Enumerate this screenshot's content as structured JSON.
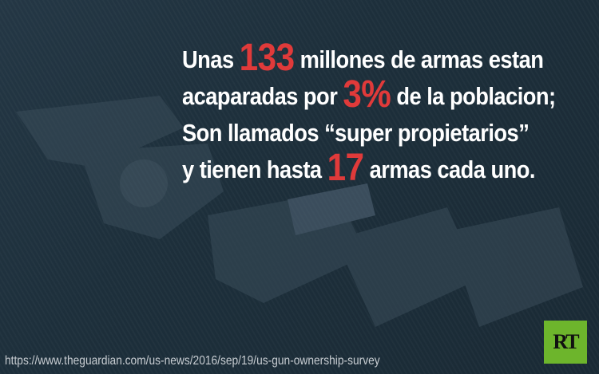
{
  "headline": {
    "line1": {
      "pre": "Unas ",
      "highlight": "133",
      "post": " millones de armas estan"
    },
    "line2": {
      "pre": "acaparadas por ",
      "highlight": "3%",
      "post": " de la poblacion;"
    },
    "line3": {
      "text": "Son llamados “super propietarios”"
    },
    "line4": {
      "pre": "y tienen hasta ",
      "highlight": "17",
      "post": " armas cada uno."
    }
  },
  "source_url": "https://www.theguardian.com/us-news/2016/sep/19/us-gun-ownership-survey",
  "logo": {
    "text": "RT"
  },
  "colors": {
    "highlight": "#e03a3a",
    "logo_bg": "#6db52c",
    "background": "#1d2f3b"
  }
}
